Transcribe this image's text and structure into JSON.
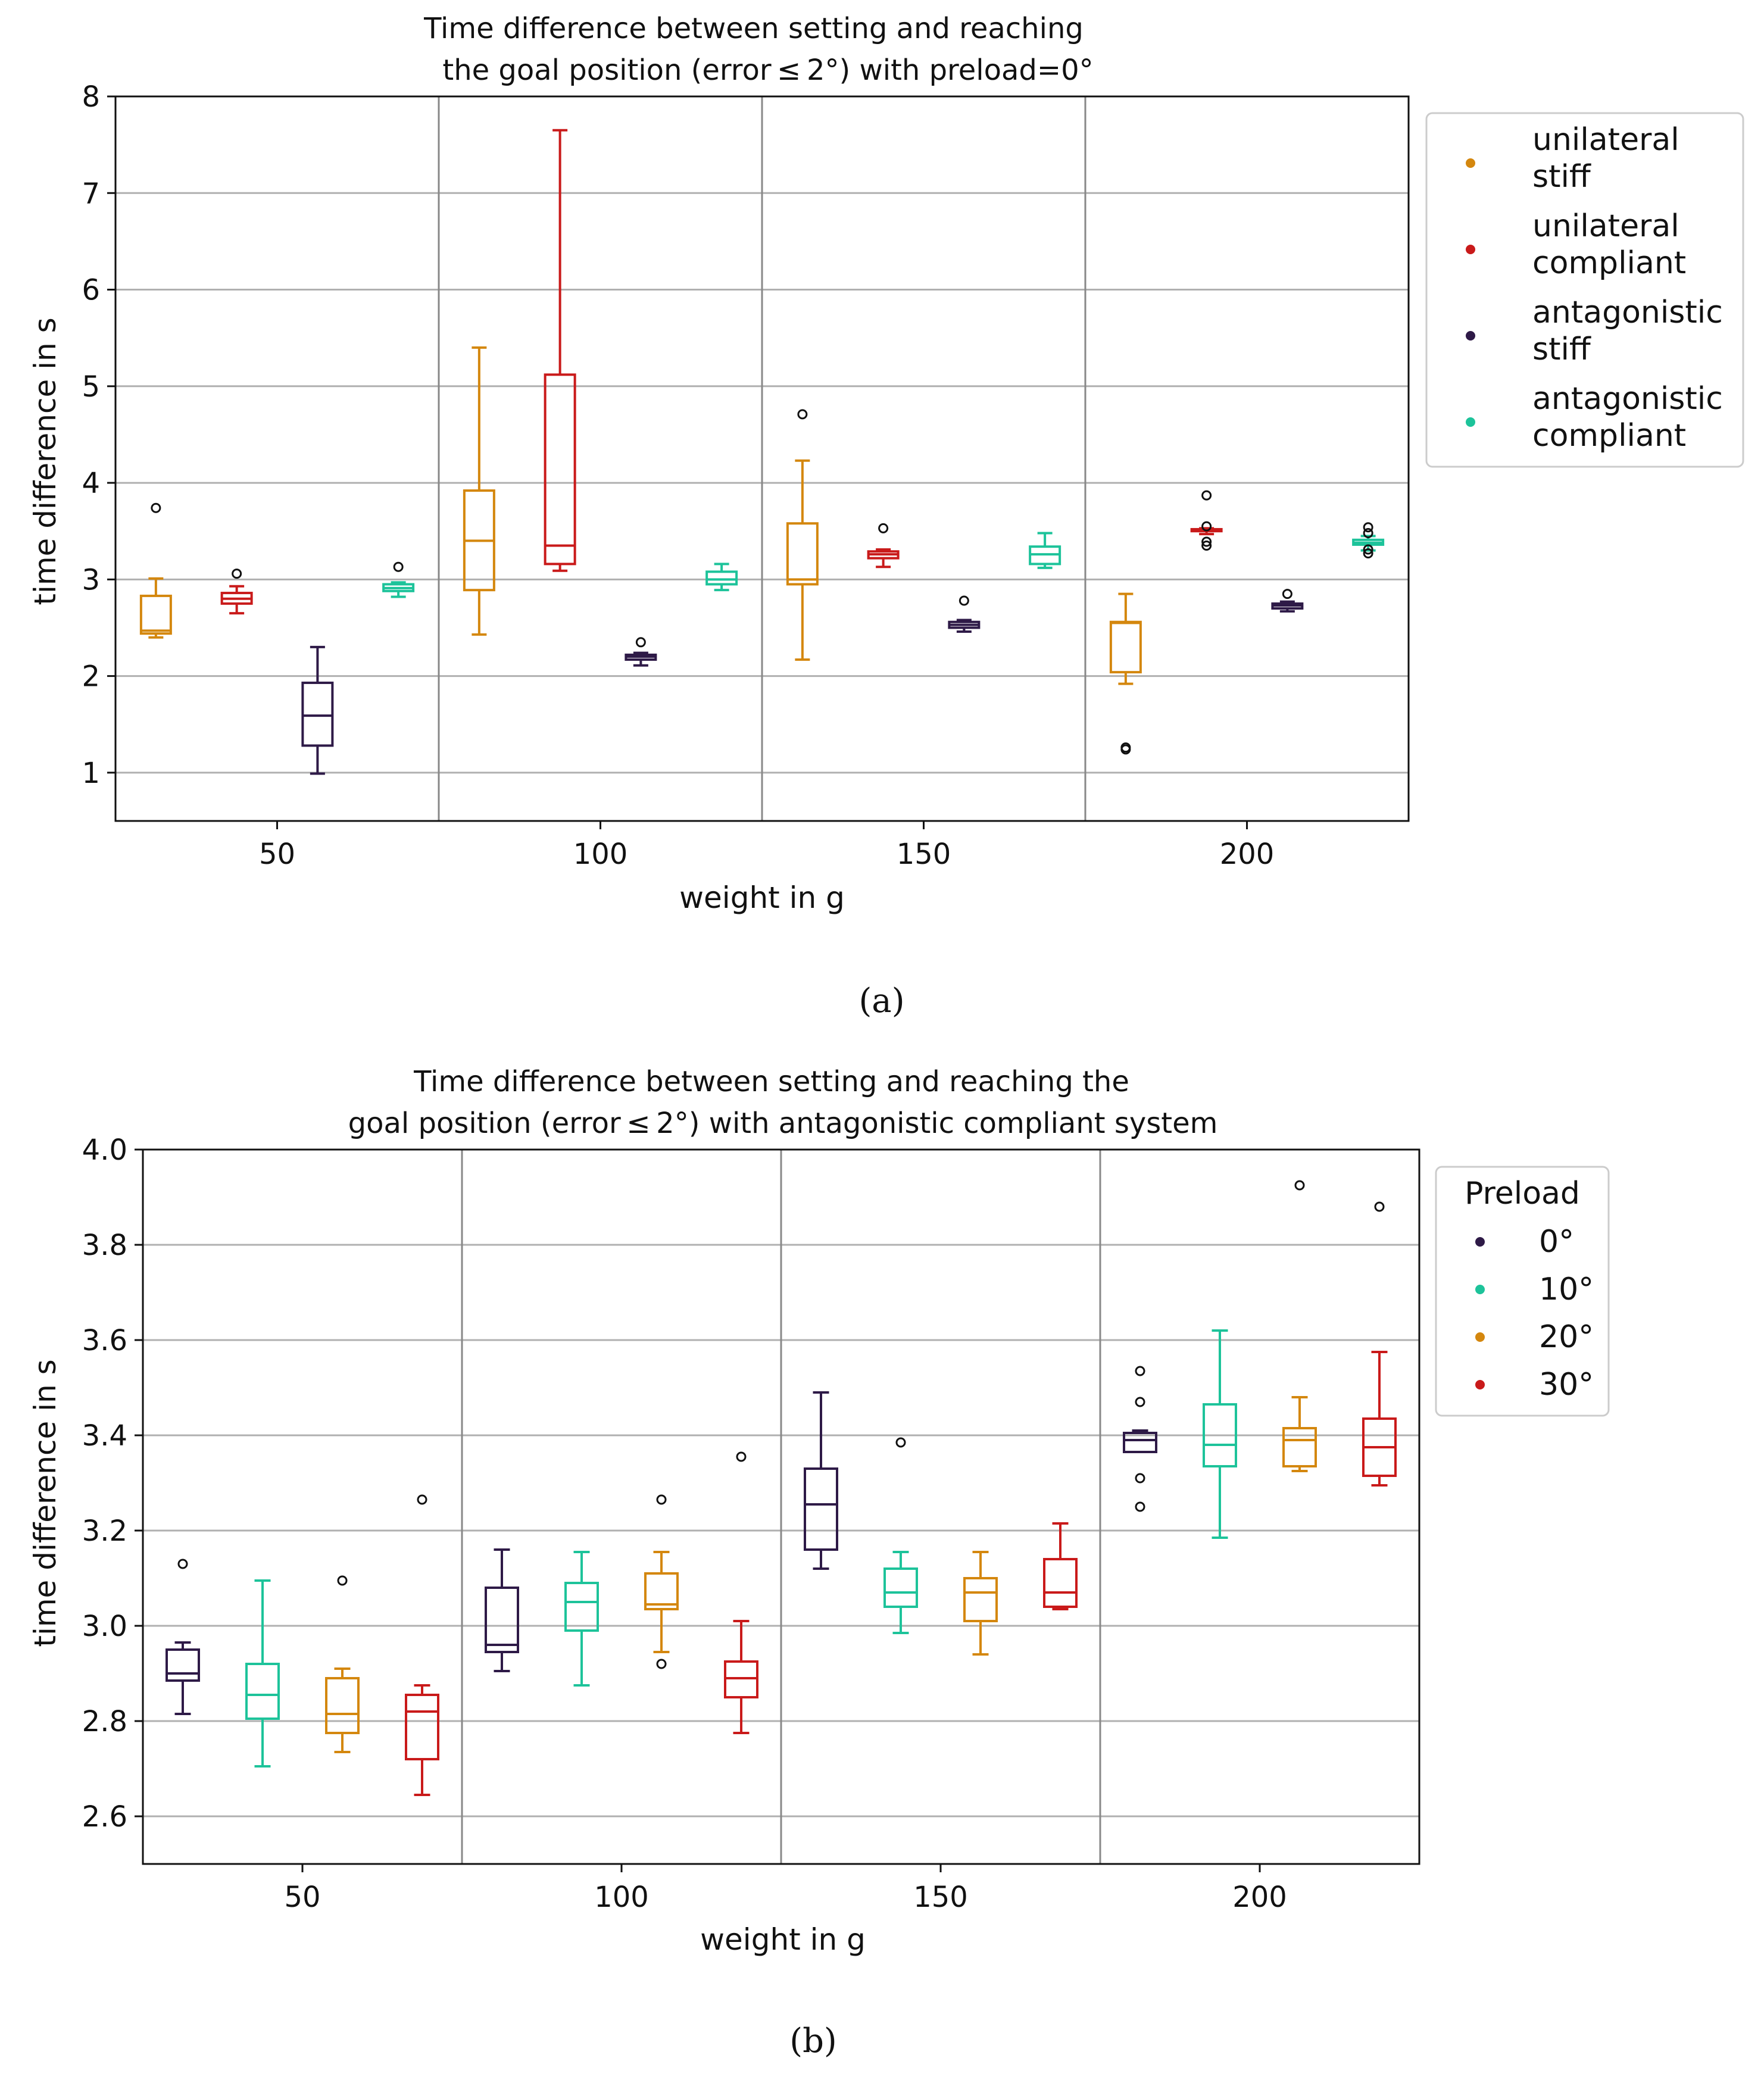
{
  "chart_data": [
    {
      "type": "box",
      "title_line1": "Time difference between setting and reaching",
      "title_line2": "the goal position (error ≤ 2°) with preload=0°",
      "xlabel": "weight in g",
      "ylabel": "time difference in s",
      "ylim": [
        0.5,
        8.0
      ],
      "yticks": [
        1,
        2,
        3,
        4,
        5,
        6,
        7,
        8
      ],
      "categories": [
        "50",
        "100",
        "150",
        "200"
      ],
      "grid": true,
      "legend_title": "",
      "legend_position": "outside-right-top",
      "caption": "(a)",
      "series": [
        {
          "name": "unilateral stiff",
          "legend_line1": "unilateral",
          "legend_line2": "stiff",
          "color": "#D4870E",
          "boxes": [
            {
              "min": 2.4,
              "q1": 2.44,
              "median": 2.47,
              "q3": 2.83,
              "max": 3.01,
              "outliers": [
                3.74
              ]
            },
            {
              "min": 2.43,
              "q1": 2.89,
              "median": 3.4,
              "q3": 3.92,
              "max": 5.4,
              "outliers": []
            },
            {
              "min": 2.17,
              "q1": 2.95,
              "median": 3.0,
              "q3": 3.58,
              "max": 4.23,
              "outliers": [
                4.71
              ]
            },
            {
              "min": 1.92,
              "q1": 2.04,
              "median": 2.55,
              "q3": 2.56,
              "max": 2.85,
              "outliers": [
                1.24,
                1.26
              ]
            }
          ]
        },
        {
          "name": "unilateral compliant",
          "legend_line1": "unilateral",
          "legend_line2": "compliant",
          "color": "#C91A1A",
          "boxes": [
            {
              "min": 2.65,
              "q1": 2.75,
              "median": 2.8,
              "q3": 2.86,
              "max": 2.93,
              "outliers": [
                3.06
              ]
            },
            {
              "min": 3.09,
              "q1": 3.16,
              "median": 3.35,
              "q3": 5.12,
              "max": 7.65,
              "outliers": []
            },
            {
              "min": 3.13,
              "q1": 3.22,
              "median": 3.26,
              "q3": 3.29,
              "max": 3.31,
              "outliers": [
                3.53
              ]
            },
            {
              "min": 3.47,
              "q1": 3.5,
              "median": 3.51,
              "q3": 3.52,
              "max": 3.53,
              "outliers": [
                3.35,
                3.39,
                3.55,
                3.87
              ]
            }
          ]
        },
        {
          "name": "antagonistic stiff",
          "legend_line1": "antagonistic",
          "legend_line2": "stiff",
          "color": "#2E1A47",
          "boxes": [
            {
              "min": 0.99,
              "q1": 1.28,
              "median": 1.59,
              "q3": 1.93,
              "max": 2.3,
              "outliers": []
            },
            {
              "min": 2.11,
              "q1": 2.17,
              "median": 2.2,
              "q3": 2.22,
              "max": 2.24,
              "outliers": [
                2.35
              ]
            },
            {
              "min": 2.46,
              "q1": 2.5,
              "median": 2.53,
              "q3": 2.56,
              "max": 2.58,
              "outliers": [
                2.78
              ]
            },
            {
              "min": 2.67,
              "q1": 2.7,
              "median": 2.73,
              "q3": 2.75,
              "max": 2.77,
              "outliers": [
                2.85
              ]
            }
          ]
        },
        {
          "name": "antagonistic compliant",
          "legend_line1": "antagonistic",
          "legend_line2": "compliant",
          "color": "#1DC39A",
          "boxes": [
            {
              "min": 2.82,
              "q1": 2.88,
              "median": 2.91,
              "q3": 2.95,
              "max": 2.97,
              "outliers": [
                3.13
              ]
            },
            {
              "min": 2.89,
              "q1": 2.95,
              "median": 3.0,
              "q3": 3.08,
              "max": 3.16,
              "outliers": []
            },
            {
              "min": 3.12,
              "q1": 3.16,
              "median": 3.26,
              "q3": 3.34,
              "max": 3.48,
              "outliers": []
            },
            {
              "min": 3.3,
              "q1": 3.36,
              "median": 3.38,
              "q3": 3.41,
              "max": 3.45,
              "outliers": [
                3.27,
                3.31,
                3.48,
                3.54
              ]
            }
          ]
        }
      ]
    },
    {
      "type": "box",
      "title_line1": "Time difference between setting and reaching the",
      "title_line2": "goal position (error ≤ 2°) with antagonistic compliant system",
      "xlabel": "weight in g",
      "ylabel": "time difference in s",
      "ylim": [
        2.5,
        4.0
      ],
      "yticks": [
        2.6,
        2.8,
        3.0,
        3.2,
        3.4,
        3.6,
        3.8,
        4.0
      ],
      "categories": [
        "50",
        "100",
        "150",
        "200"
      ],
      "grid": true,
      "legend_title": "Preload",
      "legend_position": "outside-right-top",
      "caption": "(b)",
      "series": [
        {
          "name": "0°",
          "legend_line1": "0°",
          "legend_line2": "",
          "color": "#2E1A47",
          "boxes": [
            {
              "min": 2.815,
              "q1": 2.885,
              "median": 2.9,
              "q3": 2.95,
              "max": 2.965,
              "outliers": [
                3.13
              ]
            },
            {
              "min": 2.905,
              "q1": 2.945,
              "median": 2.96,
              "q3": 3.08,
              "max": 3.16,
              "outliers": []
            },
            {
              "min": 3.12,
              "q1": 3.16,
              "median": 3.255,
              "q3": 3.33,
              "max": 3.49,
              "outliers": []
            },
            {
              "min": 3.365,
              "q1": 3.365,
              "median": 3.39,
              "q3": 3.405,
              "max": 3.41,
              "outliers": [
                3.25,
                3.31,
                3.47,
                3.535
              ]
            }
          ]
        },
        {
          "name": "10°",
          "legend_line1": "10°",
          "legend_line2": "",
          "color": "#1DC39A",
          "boxes": [
            {
              "min": 2.705,
              "q1": 2.805,
              "median": 2.855,
              "q3": 2.92,
              "max": 3.095,
              "outliers": []
            },
            {
              "min": 2.875,
              "q1": 2.99,
              "median": 3.05,
              "q3": 3.09,
              "max": 3.155,
              "outliers": []
            },
            {
              "min": 2.985,
              "q1": 3.04,
              "median": 3.07,
              "q3": 3.12,
              "max": 3.155,
              "outliers": [
                3.385
              ]
            },
            {
              "min": 3.185,
              "q1": 3.335,
              "median": 3.38,
              "q3": 3.465,
              "max": 3.62,
              "outliers": []
            }
          ]
        },
        {
          "name": "20°",
          "legend_line1": "20°",
          "legend_line2": "",
          "color": "#D4870E",
          "boxes": [
            {
              "min": 2.735,
              "q1": 2.775,
              "median": 2.815,
              "q3": 2.89,
              "max": 2.91,
              "outliers": [
                3.095
              ]
            },
            {
              "min": 2.945,
              "q1": 3.035,
              "median": 3.045,
              "q3": 3.11,
              "max": 3.155,
              "outliers": [
                2.92,
                3.265
              ]
            },
            {
              "min": 2.94,
              "q1": 3.01,
              "median": 3.07,
              "q3": 3.1,
              "max": 3.155,
              "outliers": []
            },
            {
              "min": 3.325,
              "q1": 3.335,
              "median": 3.39,
              "q3": 3.415,
              "max": 3.48,
              "outliers": [
                3.925
              ]
            }
          ]
        },
        {
          "name": "30°",
          "legend_line1": "30°",
          "legend_line2": "",
          "color": "#C91A1A",
          "boxes": [
            {
              "min": 2.645,
              "q1": 2.72,
              "median": 2.82,
              "q3": 2.855,
              "max": 2.875,
              "outliers": [
                3.265
              ]
            },
            {
              "min": 2.775,
              "q1": 2.85,
              "median": 2.89,
              "q3": 2.925,
              "max": 3.01,
              "outliers": [
                3.355
              ]
            },
            {
              "min": 3.035,
              "q1": 3.04,
              "median": 3.07,
              "q3": 3.14,
              "max": 3.215,
              "outliers": []
            },
            {
              "min": 3.295,
              "q1": 3.315,
              "median": 3.375,
              "q3": 3.435,
              "max": 3.575,
              "outliers": [
                3.88
              ]
            }
          ]
        }
      ]
    }
  ]
}
